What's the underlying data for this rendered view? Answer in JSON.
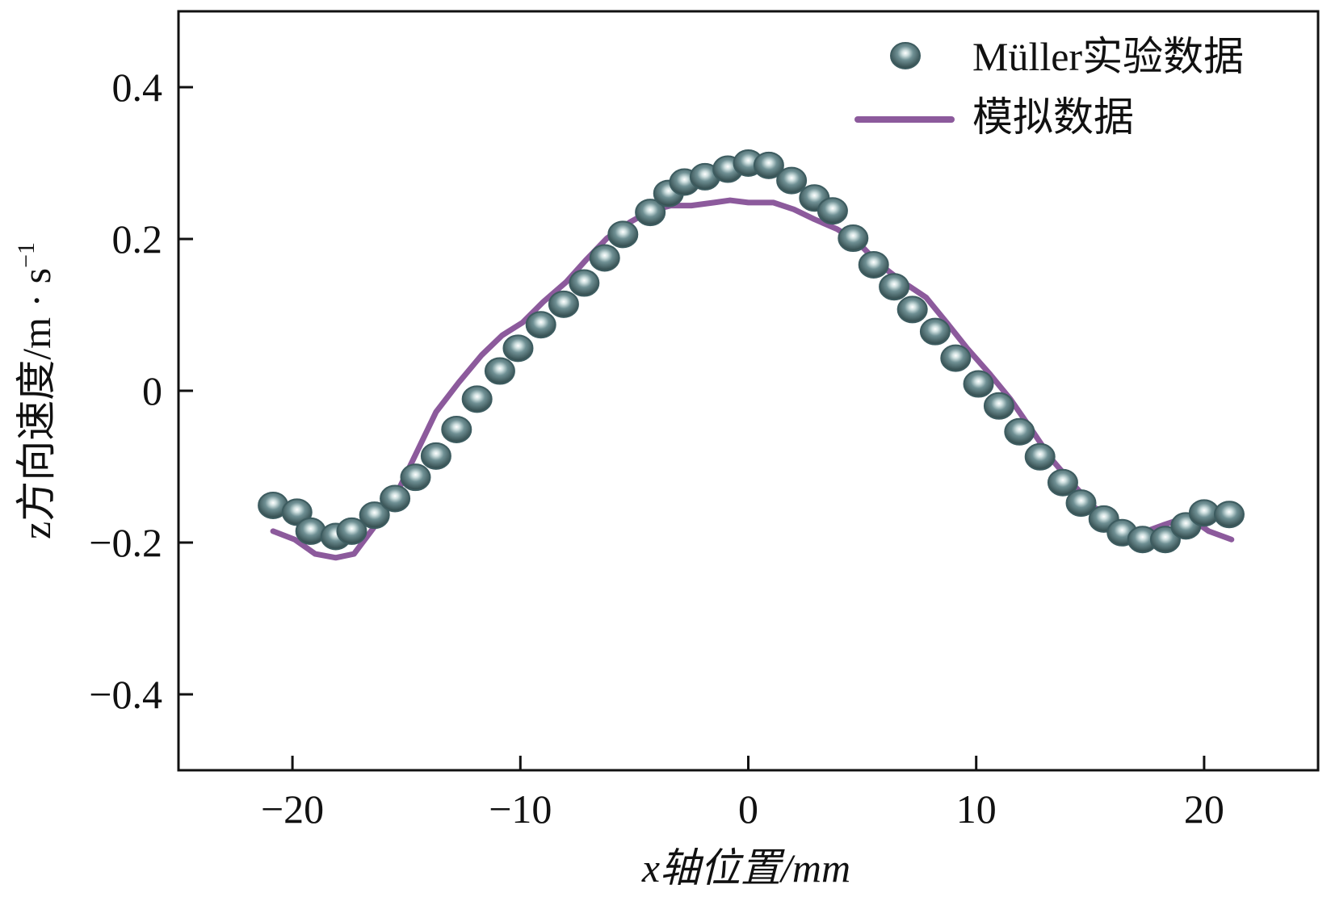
{
  "chart_data": {
    "type": "line",
    "xlabel": "x轴位置/mm",
    "ylabel": "z方向速度/m · s",
    "ylabel_sup": "−1",
    "xlim": [
      -25,
      25
    ],
    "ylim": [
      -0.5,
      0.5
    ],
    "xticks": [
      {
        "value": -20,
        "label": "−20"
      },
      {
        "value": -10,
        "label": "−10"
      },
      0,
      10,
      20
    ],
    "yticks": [
      {
        "value": -0.4,
        "label": "−0.4"
      },
      {
        "value": -0.2,
        "label": "−0.2"
      },
      0,
      0.2,
      0.4
    ],
    "legend": "top-right",
    "series": [
      {
        "name": "Müller实验数据",
        "mode": "markers",
        "color": "#3d5c60",
        "x": [
          -20.85,
          -19.8,
          -19.2,
          -18.1,
          -17.4,
          -16.4,
          -15.5,
          -14.6,
          -13.7,
          -12.8,
          -11.9,
          -10.9,
          -10.1,
          -9.1,
          -8.1,
          -7.2,
          -6.3,
          -5.5,
          -4.3,
          -3.5,
          -2.8,
          -1.9,
          -0.9,
          0,
          0.9,
          1.9,
          2.9,
          3.7,
          4.6,
          5.5,
          6.4,
          7.2,
          8.2,
          9.1,
          10.1,
          11.0,
          11.9,
          12.8,
          13.8,
          14.6,
          15.6,
          16.4,
          17.3,
          18.3,
          19.2,
          20.0,
          21.1
        ],
        "values": [
          -0.151,
          -0.16,
          -0.185,
          -0.192,
          -0.185,
          -0.164,
          -0.142,
          -0.114,
          -0.086,
          -0.051,
          -0.011,
          0.026,
          0.056,
          0.087,
          0.114,
          0.142,
          0.175,
          0.206,
          0.235,
          0.26,
          0.275,
          0.282,
          0.292,
          0.3,
          0.297,
          0.277,
          0.254,
          0.237,
          0.201,
          0.166,
          0.137,
          0.107,
          0.078,
          0.043,
          0.009,
          -0.02,
          -0.054,
          -0.087,
          -0.121,
          -0.148,
          -0.169,
          -0.187,
          -0.196,
          -0.196,
          -0.178,
          -0.161,
          -0.163
        ]
      },
      {
        "name": "模拟数据",
        "mode": "line",
        "color": "#8c5a9c",
        "x": [
          -20.85,
          -19.9,
          -19,
          -18.1,
          -17.3,
          -16.4,
          -15.5,
          -14.5,
          -13.7,
          -12.7,
          -11.7,
          -10.8,
          -9.9,
          -9,
          -8,
          -7.1,
          -6.2,
          -5.2,
          -4.3,
          -3.4,
          -2.5,
          -1.5,
          -0.8,
          0,
          1.1,
          2,
          2.9,
          3.9,
          4.8,
          5.7,
          6.7,
          7.8,
          8.7,
          9.6,
          10.6,
          11.5,
          12.4,
          13.3,
          14.3,
          15.2,
          16.1,
          17.2,
          18.2,
          19.3,
          20.2,
          21.2
        ],
        "values": [
          -0.185,
          -0.196,
          -0.215,
          -0.22,
          -0.215,
          -0.179,
          -0.14,
          -0.078,
          -0.028,
          0.011,
          0.047,
          0.073,
          0.09,
          0.117,
          0.143,
          0.173,
          0.201,
          0.222,
          0.237,
          0.244,
          0.244,
          0.248,
          0.251,
          0.248,
          0.248,
          0.239,
          0.226,
          0.213,
          0.196,
          0.168,
          0.145,
          0.123,
          0.09,
          0.056,
          0.022,
          -0.011,
          -0.05,
          -0.09,
          -0.125,
          -0.154,
          -0.173,
          -0.188,
          -0.177,
          -0.166,
          -0.185,
          -0.196
        ]
      }
    ]
  }
}
